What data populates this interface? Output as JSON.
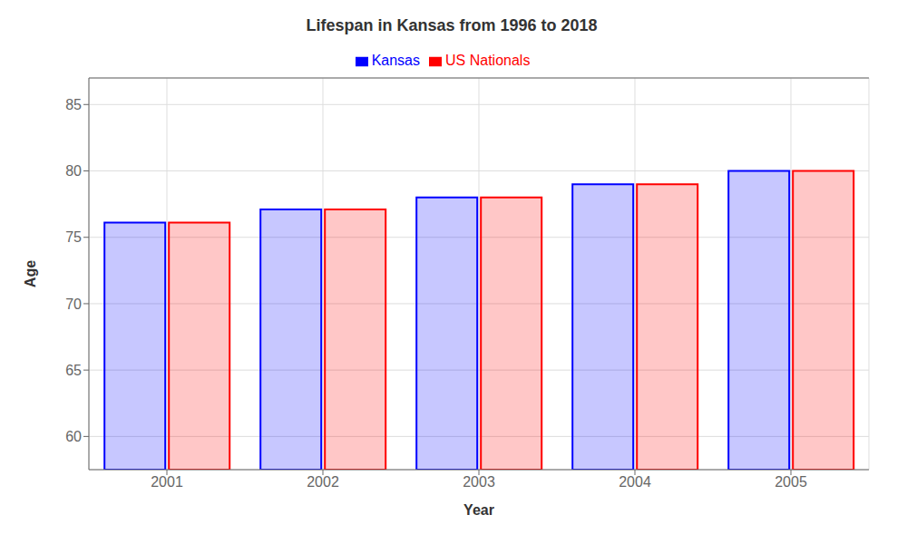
{
  "chart_data": {
    "type": "bar",
    "title": "Lifespan in Kansas from 1996 to 2018",
    "xlabel": "Year",
    "ylabel": "Age",
    "categories": [
      "2001",
      "2002",
      "2003",
      "2004",
      "2005"
    ],
    "series": [
      {
        "name": "Kansas",
        "color": "#0000ff",
        "values": [
          76.1,
          77.1,
          78.0,
          79.0,
          80.0
        ]
      },
      {
        "name": "US Nationals",
        "color": "#ff0000",
        "values": [
          76.1,
          77.1,
          78.0,
          79.0,
          80.0
        ]
      }
    ],
    "ylim": [
      57.5,
      87
    ],
    "yticks": [
      60,
      65,
      70,
      75,
      80,
      85
    ],
    "grid": true,
    "legend": "top"
  }
}
